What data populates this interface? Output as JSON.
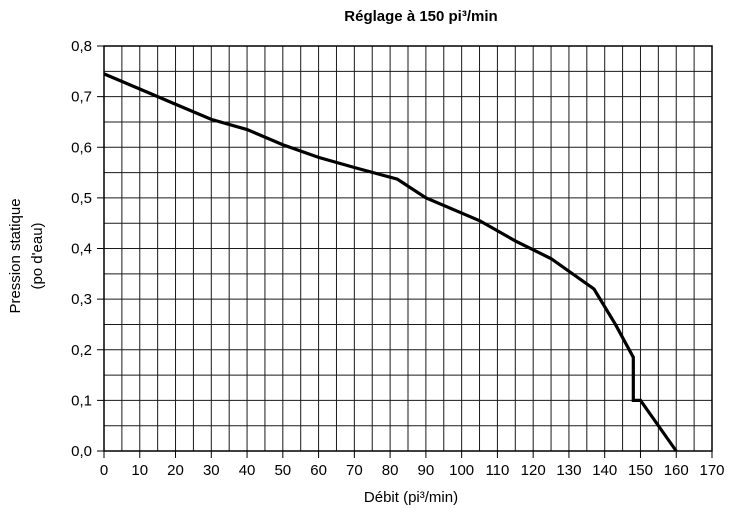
{
  "chart_data": {
    "type": "line",
    "title": "Réglage à 150 pi³/min",
    "xlabel": "Débit (pi³/min)",
    "ylabel_line1": "Pression statique",
    "ylabel_line2": "(po d'eau)",
    "xlim": [
      0,
      170
    ],
    "ylim": [
      0,
      0.8
    ],
    "x_ticks": [
      0,
      10,
      20,
      30,
      40,
      50,
      60,
      70,
      80,
      90,
      100,
      110,
      120,
      130,
      140,
      150,
      160,
      170
    ],
    "y_ticks": [
      0,
      0.1,
      0.2,
      0.3,
      0.4,
      0.5,
      0.6,
      0.7,
      0.8
    ],
    "x_tick_labels": [
      "0",
      "10",
      "20",
      "30",
      "40",
      "50",
      "60",
      "70",
      "80",
      "90",
      "100",
      "110",
      "120",
      "130",
      "140",
      "150",
      "160",
      "170"
    ],
    "y_tick_labels": [
      "0,0",
      "0,1",
      "0,2",
      "0,3",
      "0,4",
      "0,5",
      "0,6",
      "0,7",
      "0,8"
    ],
    "minor_grid_x_step": 5,
    "minor_grid_y_step": 0.05,
    "grid": true,
    "series": [
      {
        "x": [
          0,
          10,
          20,
          30,
          40,
          50,
          60,
          70,
          82,
          90,
          105,
          115,
          125,
          137,
          143,
          148,
          148,
          150,
          160
        ],
        "y": [
          0.745,
          0.715,
          0.685,
          0.655,
          0.635,
          0.605,
          0.58,
          0.56,
          0.537,
          0.5,
          0.455,
          0.415,
          0.38,
          0.32,
          0.25,
          0.185,
          0.1,
          0.1,
          0.0
        ]
      }
    ],
    "colors": {
      "line": "#000000",
      "grid": "#1a1a1a",
      "text": "#111111"
    }
  }
}
